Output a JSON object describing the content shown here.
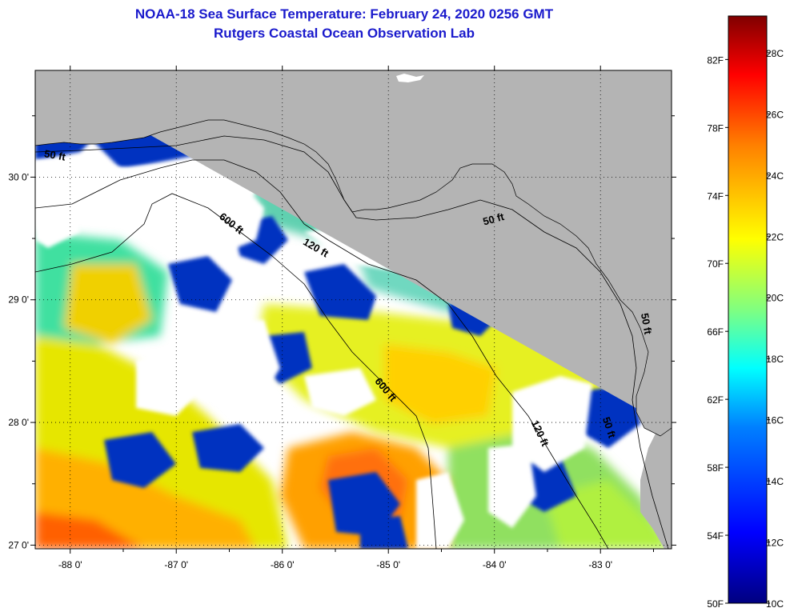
{
  "header": {
    "title": "NOAA-18 Sea Surface Temperature:  February 24, 2020 0256 GMT",
    "subtitle": "Rutgers Coastal Ocean Observation Lab"
  },
  "map": {
    "lon_range": [
      -88.33,
      -82.33
    ],
    "lat_range": [
      26.97,
      30.87
    ],
    "lon_ticks": [
      {
        "value": -88,
        "label": "-88 0'"
      },
      {
        "value": -87,
        "label": "-87 0'"
      },
      {
        "value": -86,
        "label": "-86 0'"
      },
      {
        "value": -85,
        "label": "-85 0'"
      },
      {
        "value": -84,
        "label": "-84 0'"
      },
      {
        "value": -83,
        "label": "-83 0'"
      }
    ],
    "lat_ticks": [
      {
        "value": 30,
        "label": "30 0'"
      },
      {
        "value": 29,
        "label": "29 0'"
      },
      {
        "value": 28,
        "label": "28 0'"
      },
      {
        "value": 27,
        "label": "27 0'"
      }
    ],
    "grid": "dotted",
    "land_color": "#b4b4b4",
    "cloud_color": "#ffffff",
    "contour_labels": [
      {
        "text": "50 ft",
        "lon": -84.0,
        "lat": 29.63,
        "rotate": -15
      },
      {
        "text": "120 ft",
        "lon": -85.7,
        "lat": 29.4,
        "rotate": 30
      },
      {
        "text": "600 ft",
        "lon": -86.5,
        "lat": 29.6,
        "rotate": 38
      },
      {
        "text": "600 ft",
        "lon": -85.05,
        "lat": 28.25,
        "rotate": 50
      },
      {
        "text": "120 ft",
        "lon": -83.6,
        "lat": 27.9,
        "rotate": 65
      },
      {
        "text": "50 ft",
        "lon": -82.95,
        "lat": 27.95,
        "rotate": 72
      },
      {
        "text": "50 ft",
        "lon": -82.6,
        "lat": 28.8,
        "rotate": 80
      },
      {
        "text": "50 ft",
        "lon": -88.15,
        "lat": 30.15,
        "rotate": 10
      }
    ]
  },
  "colorbar": {
    "f_labels": [
      "82F",
      "78F",
      "74F",
      "70F",
      "66F",
      "62F",
      "58F",
      "54F",
      "50F"
    ],
    "c_labels": [
      "28C",
      "26C",
      "24C",
      "22C",
      "20C",
      "18C",
      "16C",
      "14C",
      "12C",
      "10C"
    ],
    "range_c": [
      10,
      29.2
    ],
    "colors": [
      "#000080",
      "#0000ff",
      "#0080ff",
      "#00ffff",
      "#80ff80",
      "#ffff00",
      "#ff8000",
      "#ff0000",
      "#800000"
    ]
  }
}
